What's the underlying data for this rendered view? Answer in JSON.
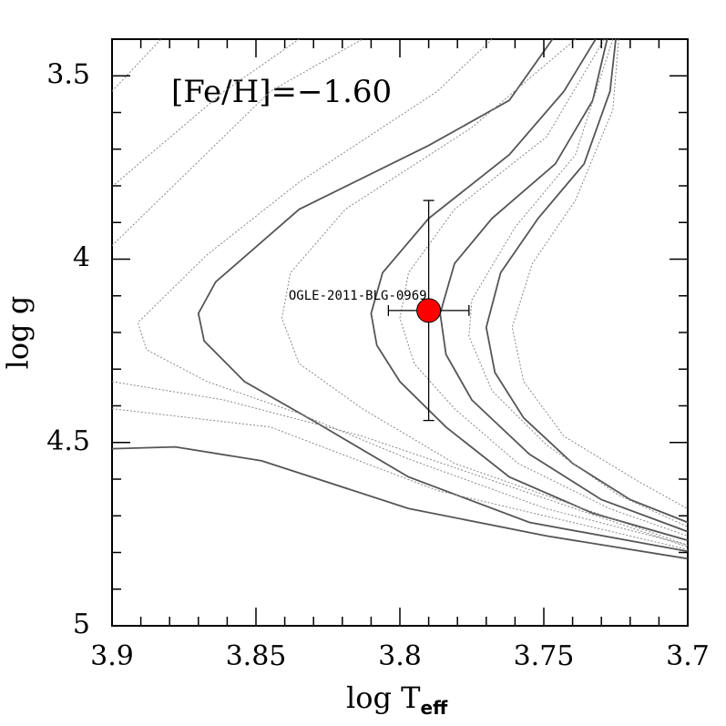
{
  "chart_data": {
    "type": "line",
    "annotation": "[Fe/H]=−1.60",
    "xlabel": "log T",
    "xlabel_sub": "eff",
    "ylabel": "log g",
    "xlim": [
      3.7,
      3.9
    ],
    "x_inverted": true,
    "ylim": [
      3.4,
      5.0
    ],
    "y_inverted": true,
    "xticks": [
      3.9,
      3.85,
      3.8,
      3.75,
      3.7
    ],
    "yticks": [
      3.5,
      4,
      4.5,
      5
    ],
    "xminorticks": [
      3.89,
      3.88,
      3.87,
      3.86,
      3.84,
      3.83,
      3.82,
      3.81,
      3.79,
      3.78,
      3.77,
      3.76,
      3.74,
      3.73,
      3.72,
      3.71
    ],
    "yminorticks": [
      3.6,
      3.7,
      3.8,
      3.9,
      4.1,
      4.2,
      4.3,
      4.4,
      4.6,
      4.7,
      4.8,
      4.9
    ],
    "series": [
      {
        "color": "#555555",
        "dashed": false,
        "x": [
          3.9,
          3.878,
          3.848,
          3.797,
          3.749,
          3.7
        ],
        "y": [
          4.517,
          4.512,
          4.55,
          4.68,
          4.755,
          4.817
        ]
      },
      {
        "color": "#555555",
        "dashed": false,
        "x": [
          3.747,
          3.762,
          3.79,
          3.835,
          3.864,
          3.87,
          3.868,
          3.854,
          3.829,
          3.797,
          3.755,
          3.7
        ],
        "y": [
          3.4,
          3.567,
          3.69,
          3.864,
          4.062,
          4.148,
          4.223,
          4.334,
          4.446,
          4.594,
          4.718,
          4.797
        ]
      },
      {
        "color": "#555555",
        "dashed": false,
        "x": [
          3.732,
          3.743,
          3.762,
          3.79,
          3.806,
          3.81,
          3.808,
          3.8,
          3.784,
          3.762,
          3.733,
          3.7
        ],
        "y": [
          3.4,
          3.542,
          3.715,
          3.889,
          4.037,
          4.148,
          4.235,
          4.334,
          4.458,
          4.594,
          4.693,
          4.767
        ]
      },
      {
        "color": "#555555",
        "dashed": false,
        "x": [
          3.728,
          3.733,
          3.746,
          3.768,
          3.781,
          3.786,
          3.784,
          3.775,
          3.755,
          3.73,
          3.7
        ],
        "y": [
          3.4,
          3.567,
          3.74,
          3.889,
          4.012,
          4.148,
          4.26,
          4.384,
          4.532,
          4.656,
          4.743
        ]
      },
      {
        "color": "#555555",
        "dashed": false,
        "x": [
          3.725,
          3.727,
          3.736,
          3.752,
          3.765,
          3.77,
          3.767,
          3.757,
          3.74,
          3.72,
          3.7
        ],
        "y": [
          3.4,
          3.542,
          3.74,
          3.889,
          4.037,
          4.186,
          4.309,
          4.433,
          4.557,
          4.656,
          4.718
        ]
      },
      {
        "color": "#888888",
        "dashed": true,
        "x": [
          3.9,
          3.845,
          3.813
        ],
        "y": [
          3.963,
          3.542,
          3.4
        ]
      },
      {
        "color": "#888888",
        "dashed": true,
        "x": [
          3.9,
          3.861,
          3.835
        ],
        "y": [
          3.802,
          3.542,
          3.4
        ]
      },
      {
        "color": "#888888",
        "dashed": true,
        "x": [
          3.9,
          3.883
        ],
        "y": [
          3.542,
          3.4
        ]
      },
      {
        "color": "#888888",
        "dashed": true,
        "x": [
          3.768,
          3.787,
          3.835,
          3.867,
          3.891,
          3.888,
          3.867,
          3.835,
          3.797,
          3.749,
          3.7
        ],
        "y": [
          3.4,
          3.542,
          3.79,
          3.988,
          4.173,
          4.247,
          4.334,
          4.421,
          4.545,
          4.681,
          4.78
        ]
      },
      {
        "color": "#888888",
        "dashed": true,
        "x": [
          3.739,
          3.775,
          3.819,
          3.838,
          3.841,
          3.835,
          3.813,
          3.781,
          3.736,
          3.7
        ],
        "y": [
          3.4,
          3.641,
          3.864,
          4.037,
          4.161,
          4.285,
          4.408,
          4.557,
          4.681,
          4.78
        ]
      },
      {
        "color": "#888888",
        "dashed": true,
        "x": [
          3.729,
          3.749,
          3.781,
          3.797,
          3.8,
          3.795,
          3.781,
          3.759,
          3.727,
          3.7
        ],
        "y": [
          3.4,
          3.666,
          3.864,
          4.037,
          4.161,
          4.285,
          4.408,
          4.557,
          4.681,
          4.755
        ]
      },
      {
        "color": "#888888",
        "dashed": true,
        "x": [
          3.726,
          3.739,
          3.76,
          3.775,
          3.776,
          3.768,
          3.749,
          3.724,
          3.7
        ],
        "y": [
          3.4,
          3.715,
          3.913,
          4.111,
          4.21,
          4.359,
          4.507,
          4.644,
          4.73
        ]
      },
      {
        "color": "#888888",
        "dashed": true,
        "x": [
          3.724,
          3.726,
          3.739,
          3.754,
          3.761,
          3.757,
          3.743,
          3.717,
          3.7
        ],
        "y": [
          3.4,
          3.592,
          3.839,
          4.012,
          4.186,
          4.334,
          4.483,
          4.607,
          4.681
        ]
      },
      {
        "color": "#888888",
        "dashed": true,
        "x": [
          3.9,
          3.845,
          3.787,
          3.7
        ],
        "y": [
          4.408,
          4.458,
          4.631,
          4.792
        ]
      },
      {
        "color": "#888888",
        "dashed": true,
        "x": [
          3.9,
          3.861,
          3.813,
          3.7
        ],
        "y": [
          4.334,
          4.384,
          4.483,
          4.785
        ]
      }
    ],
    "point": {
      "label": "OGLE-2011-BLG-0969",
      "color": "#ff0000",
      "x": 3.79,
      "y": 4.14,
      "xerr": 0.014,
      "yerr": 0.3
    }
  }
}
